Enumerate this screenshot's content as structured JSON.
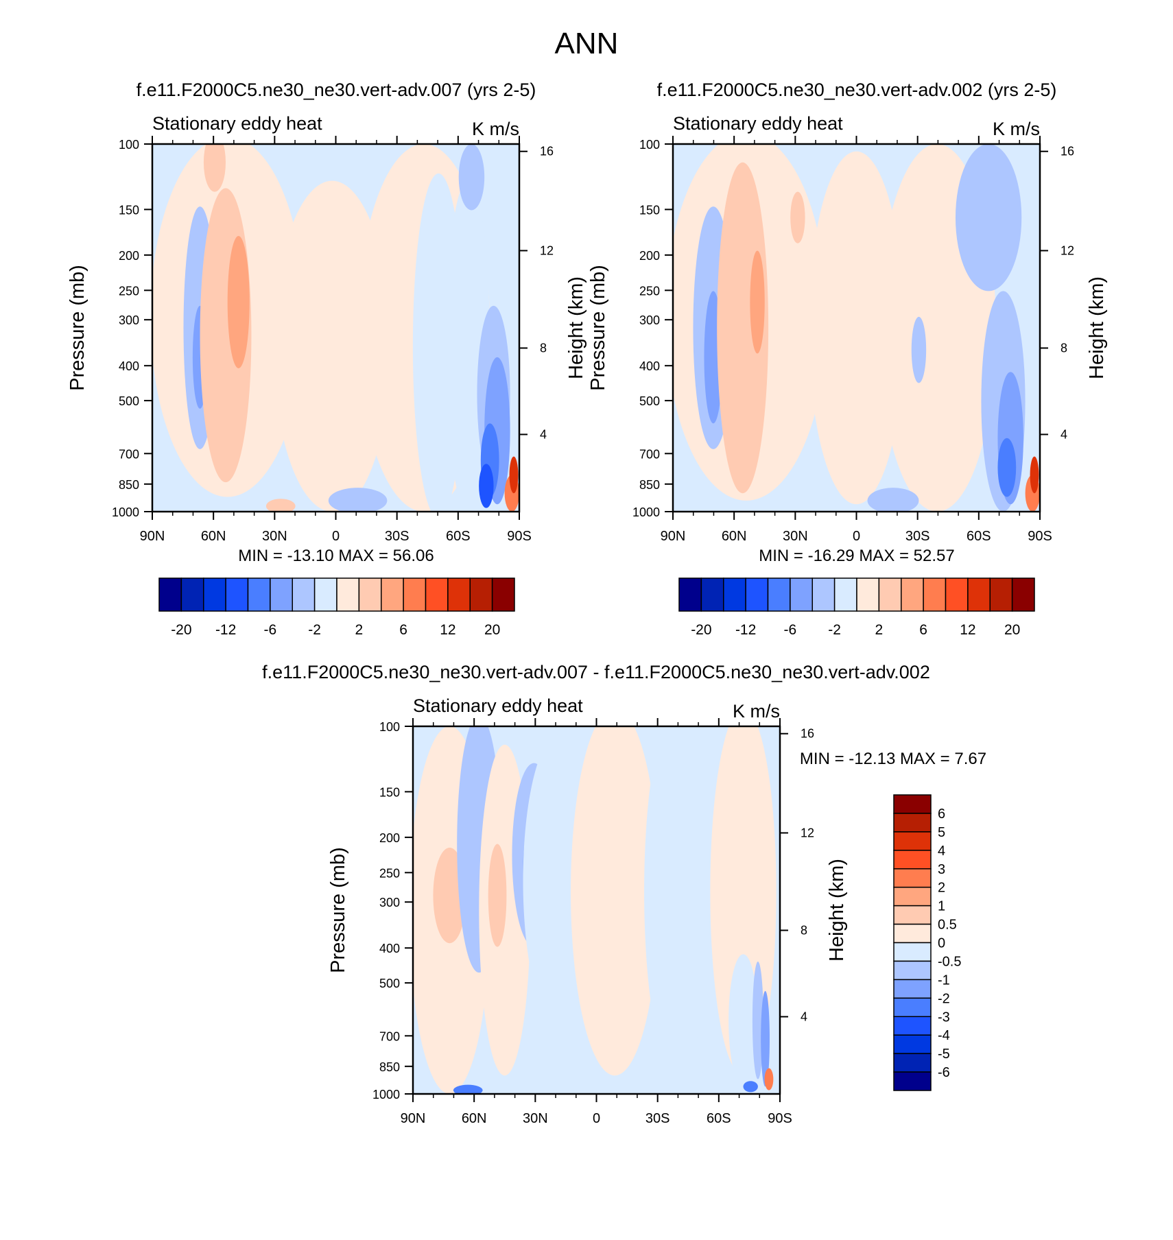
{
  "figure_title": "ANN",
  "palette": [
    "#00008c",
    "#0023b4",
    "#0039e1",
    "#1e54ff",
    "#4a7eff",
    "#7ea2ff",
    "#adc6ff",
    "#d9ebff",
    "#ffeadc",
    "#ffcbb2",
    "#ffa67f",
    "#ff7d4f",
    "#ff5024",
    "#de3208",
    "#b61f03",
    "#8a0000"
  ],
  "chart_data": [
    {
      "type": "heatmap",
      "title": "f.e11.F2000C5.ne30_ne30.vert-adv.007 (yrs 2-5)",
      "left_label": "Stationary eddy heat",
      "right_label": "K m/s",
      "ylabel": "Pressure (mb)",
      "y2label": "Height (km)",
      "x_ticks": [
        "90N",
        "60N",
        "30N",
        "0",
        "30S",
        "60S",
        "90S"
      ],
      "y_ticks": [
        "100",
        "150",
        "200",
        "250",
        "300",
        "400",
        "500",
        "700",
        "850",
        "1000"
      ],
      "y_values": [
        100,
        150,
        200,
        250,
        300,
        400,
        500,
        700,
        850,
        1000
      ],
      "y2_ticks": [
        "16",
        "12",
        "8",
        "4"
      ],
      "y2_values": [
        16,
        12,
        8,
        4
      ],
      "ylim": [
        1000,
        100
      ],
      "minmax": "MIN = -13.10  MAX =  56.06",
      "levels": [
        "-20",
        "-12",
        "-6",
        "-2",
        "2",
        "6",
        "12",
        "20"
      ]
    },
    {
      "type": "heatmap",
      "title": "f.e11.F2000C5.ne30_ne30.vert-adv.002 (yrs 2-5)",
      "left_label": "Stationary eddy heat",
      "right_label": "K m/s",
      "ylabel": "Pressure (mb)",
      "y2label": "Height (km)",
      "x_ticks": [
        "90N",
        "60N",
        "30N",
        "0",
        "30S",
        "60S",
        "90S"
      ],
      "y_ticks": [
        "100",
        "150",
        "200",
        "250",
        "300",
        "400",
        "500",
        "700",
        "850",
        "1000"
      ],
      "y_values": [
        100,
        150,
        200,
        250,
        300,
        400,
        500,
        700,
        850,
        1000
      ],
      "y2_ticks": [
        "16",
        "12",
        "8",
        "4"
      ],
      "y2_values": [
        16,
        12,
        8,
        4
      ],
      "ylim": [
        1000,
        100
      ],
      "minmax": "MIN = -16.29  MAX =  52.57",
      "levels": [
        "-20",
        "-12",
        "-6",
        "-2",
        "2",
        "6",
        "12",
        "20"
      ]
    },
    {
      "type": "heatmap",
      "title": "f.e11.F2000C5.ne30_ne30.vert-adv.007 - f.e11.F2000C5.ne30_ne30.vert-adv.002",
      "left_label": "Stationary eddy heat",
      "right_label": "K m/s",
      "ylabel": "Pressure (mb)",
      "y2label": "Height (km)",
      "x_ticks": [
        "90N",
        "60N",
        "30N",
        "0",
        "30S",
        "60S",
        "90S"
      ],
      "y_ticks": [
        "100",
        "150",
        "200",
        "250",
        "300",
        "400",
        "500",
        "700",
        "850",
        "1000"
      ],
      "y_values": [
        100,
        150,
        200,
        250,
        300,
        400,
        500,
        700,
        850,
        1000
      ],
      "y2_ticks": [
        "16",
        "12",
        "8",
        "4"
      ],
      "y2_values": [
        16,
        12,
        8,
        4
      ],
      "ylim": [
        1000,
        100
      ],
      "minmax": "MIN = -12.13  MAX =   7.67",
      "levels": [
        "6",
        "5",
        "4",
        "3",
        "2",
        "1",
        "0.5",
        "0",
        "-0.5",
        "-1",
        "-2",
        "-3",
        "-4",
        "-5",
        "-6"
      ]
    }
  ]
}
